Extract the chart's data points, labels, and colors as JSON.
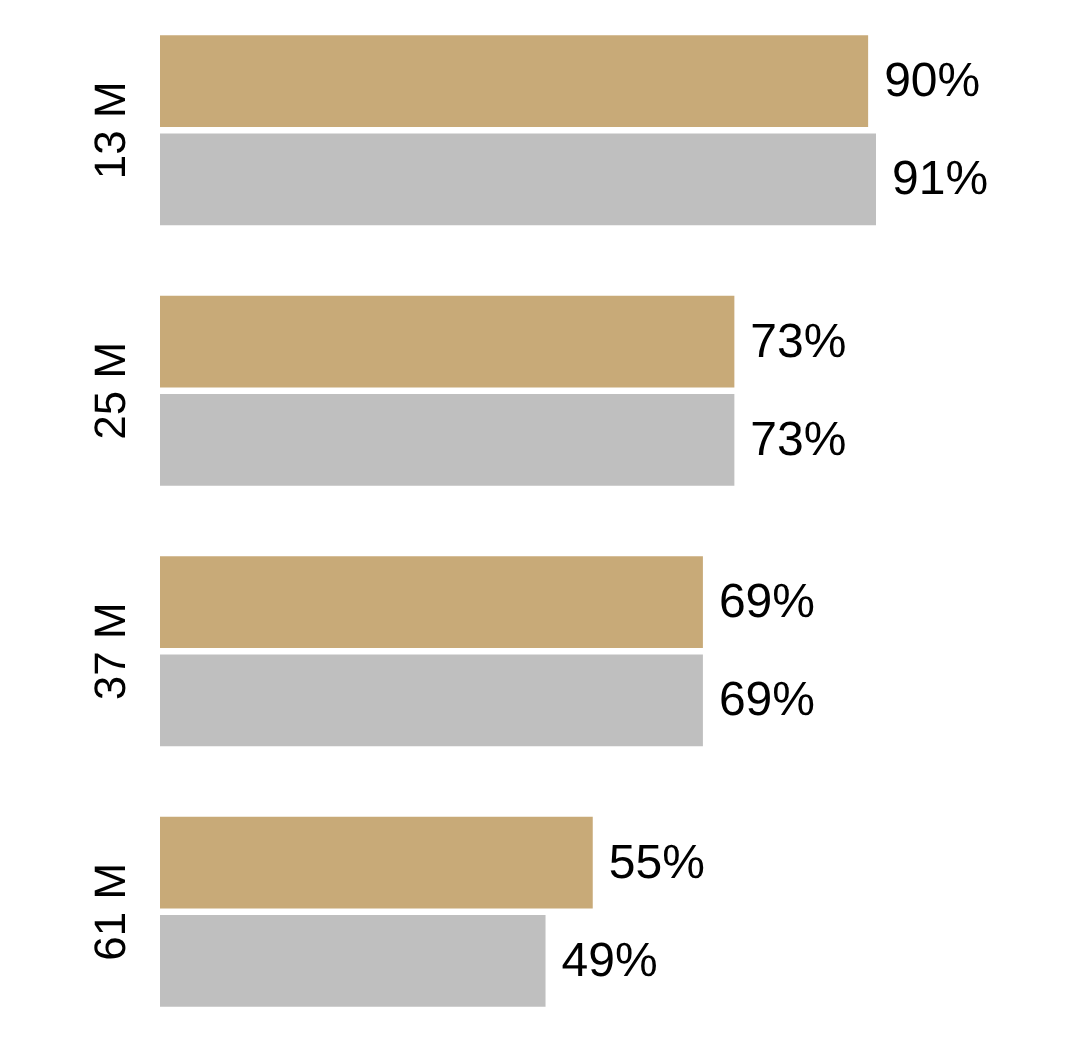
{
  "chart_data": {
    "type": "bar",
    "orientation": "horizontal",
    "categories": [
      "13 M",
      "25 M",
      "37 M",
      "61 M"
    ],
    "tick_labels": "y",
    "series": [
      {
        "color": "#c8aa78",
        "values": [
          90,
          73,
          69,
          55
        ],
        "value_labels": [
          "90%",
          "73%",
          "69%",
          "55%"
        ]
      },
      {
        "color": "#bfbfbf",
        "values": [
          91,
          73,
          69,
          49
        ],
        "value_labels": [
          "91%",
          "73%",
          "69%",
          "49%"
        ]
      }
    ]
  }
}
